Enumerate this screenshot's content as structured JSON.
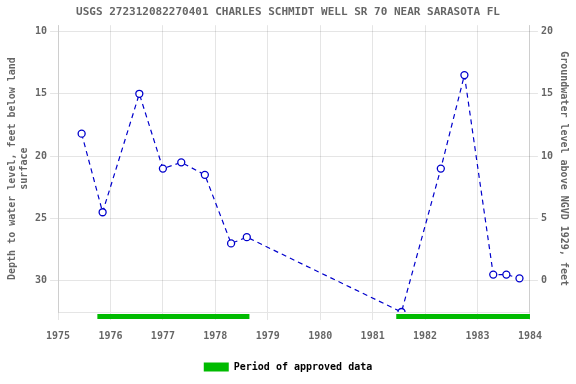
{
  "chart_data": {
    "type": "line",
    "title": "USGS 272312082270401 CHARLES SCHMIDT WELL SR 70 NEAR SARASOTA FL",
    "y_label": "Depth to water level, feet below land\nsurface",
    "y2_label": "Groundwater level above NGVD 1929, feet",
    "x": [
      1975.45,
      1975.85,
      1976.55,
      1977.0,
      1977.35,
      1977.8,
      1978.3,
      1978.6,
      1981.55,
      1982.3,
      1982.75,
      1983.3,
      1983.55,
      1983.8
    ],
    "series": [
      {
        "color": "#0000cc",
        "marker": "circle",
        "line_style": "dashed",
        "values": [
          18.2,
          24.5,
          15.0,
          21.0,
          20.5,
          21.5,
          27.0,
          26.5,
          32.5,
          21.0,
          13.5,
          29.5,
          29.5,
          29.8
        ]
      }
    ],
    "xlim": [
      1975,
      1984
    ],
    "xticks": [
      1975,
      1976,
      1977,
      1978,
      1979,
      1980,
      1981,
      1982,
      1983,
      1984
    ],
    "ylim": [
      32.5,
      9.5
    ],
    "yticks": [
      10,
      15,
      20,
      25,
      30
    ],
    "y2lim": [
      -2.5,
      20.5
    ],
    "y2ticks": [
      0,
      5,
      10,
      15,
      20
    ],
    "grid": true,
    "legend": "bottom",
    "approved_periods": {
      "name": "Period of approved data",
      "color": "#00bb00",
      "ranges": [
        [
          1975.75,
          1978.65
        ],
        [
          1981.45,
          1984.0
        ]
      ]
    }
  }
}
